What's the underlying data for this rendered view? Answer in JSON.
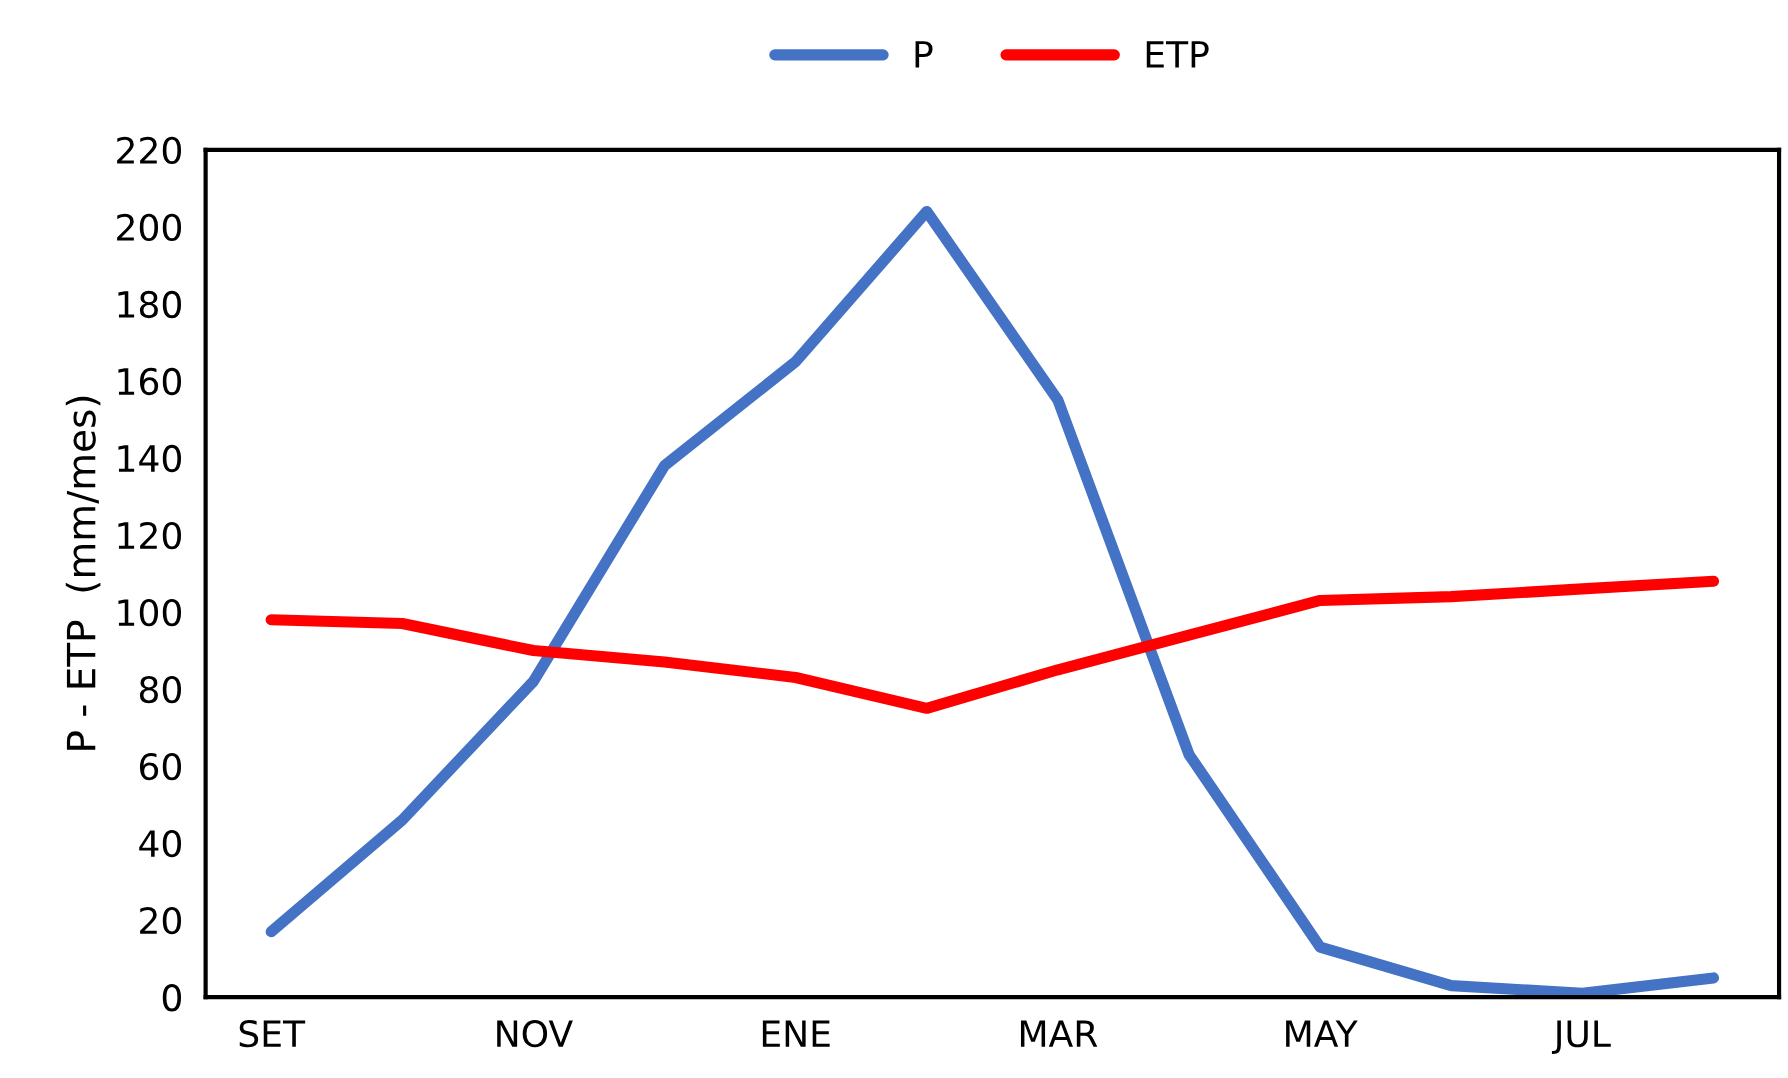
{
  "chart_data": {
    "type": "line",
    "ylabel": "P - ETP  (mm/mes)",
    "categories": [
      "SET",
      null,
      "NOV",
      null,
      "ENE",
      null,
      "MAR",
      null,
      "MAY",
      null,
      "JUL",
      null
    ],
    "series": [
      {
        "name": "P",
        "color": "#4472c4",
        "values": [
          17,
          46,
          82,
          138,
          165,
          204,
          155,
          63,
          13,
          3,
          1,
          5
        ]
      },
      {
        "name": "ETP",
        "color": "#ff0000",
        "values": [
          98,
          97,
          90,
          87,
          83,
          75,
          85,
          94,
          103,
          104,
          106,
          108
        ]
      }
    ],
    "ylim": [
      0,
      220
    ],
    "yticks": [
      0,
      20,
      40,
      60,
      80,
      100,
      120,
      140,
      160,
      180,
      200,
      220
    ],
    "legend": "top",
    "grid": false,
    "marker": "none",
    "line_style": "solid"
  }
}
